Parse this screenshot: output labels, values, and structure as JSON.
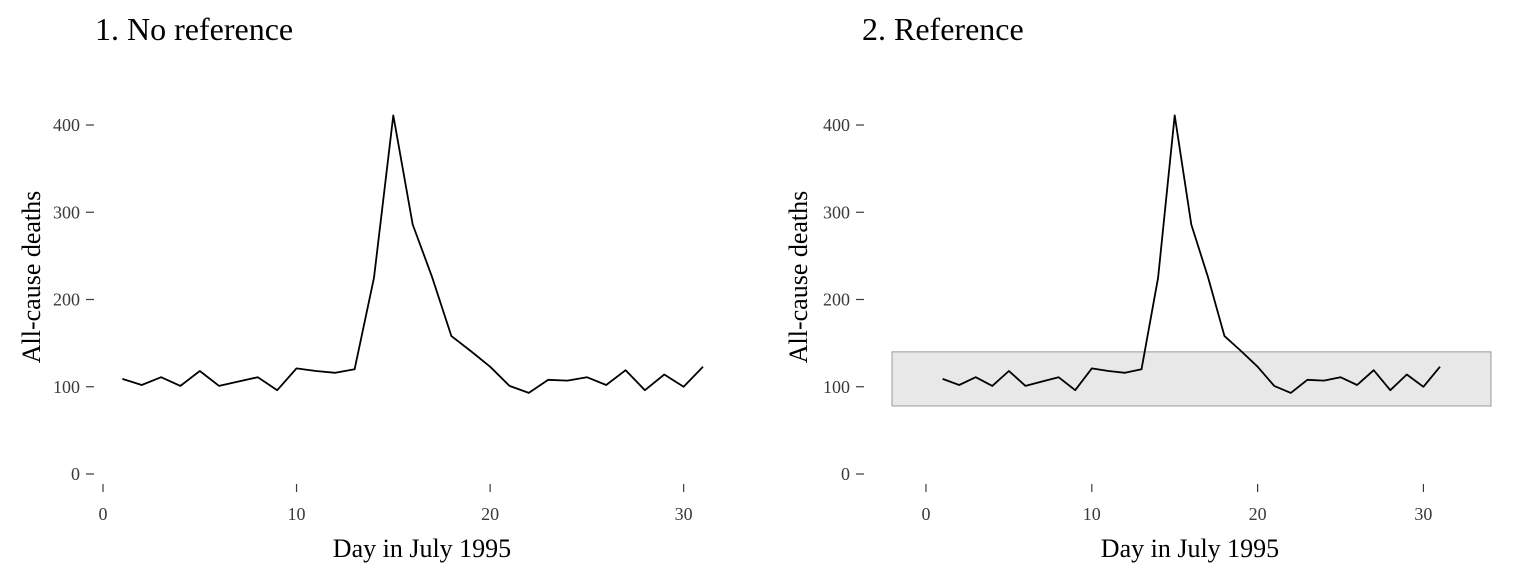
{
  "chart_data": [
    {
      "type": "line",
      "title": "1. No reference",
      "xlabel": "Day in July 1995",
      "ylabel": "All-cause deaths",
      "xlim": [
        0,
        31
      ],
      "ylim": [
        0,
        400
      ],
      "xticks": [
        0,
        10,
        20,
        30
      ],
      "yticks": [
        0,
        100,
        200,
        300,
        400
      ],
      "grid": false,
      "series": [
        {
          "x": [
            1,
            2,
            3,
            4,
            5,
            6,
            7,
            8,
            9,
            10,
            11,
            12,
            13,
            14,
            15,
            16,
            17,
            18,
            19,
            20,
            21,
            22,
            23,
            24,
            25,
            26,
            27,
            28,
            29,
            30,
            31
          ],
          "values": [
            109,
            102,
            111,
            101,
            118,
            101,
            106,
            111,
            96,
            121,
            118,
            116,
            120,
            225,
            411,
            286,
            226,
            158,
            141,
            123,
            101,
            93,
            108,
            107,
            111,
            102,
            119,
            96,
            114,
            100,
            123
          ]
        }
      ]
    },
    {
      "type": "line",
      "title": "2. Reference",
      "xlabel": "Day in July 1995",
      "ylabel": "All-cause deaths",
      "xlim": [
        0,
        31
      ],
      "ylim": [
        0,
        400
      ],
      "xticks": [
        0,
        10,
        20,
        30
      ],
      "yticks": [
        0,
        100,
        200,
        300,
        400
      ],
      "grid": false,
      "reference_band": {
        "y_min": 78,
        "y_max": 140,
        "color": "#e8e8e8"
      },
      "series": [
        {
          "x": [
            1,
            2,
            3,
            4,
            5,
            6,
            7,
            8,
            9,
            10,
            11,
            12,
            13,
            14,
            15,
            16,
            17,
            18,
            19,
            20,
            21,
            22,
            23,
            24,
            25,
            26,
            27,
            28,
            29,
            30,
            31
          ],
          "values": [
            109,
            102,
            111,
            101,
            118,
            101,
            106,
            111,
            96,
            121,
            118,
            116,
            120,
            225,
            411,
            286,
            226,
            158,
            141,
            123,
            101,
            93,
            108,
            107,
            111,
            102,
            119,
            96,
            114,
            100,
            123
          ]
        }
      ]
    }
  ]
}
